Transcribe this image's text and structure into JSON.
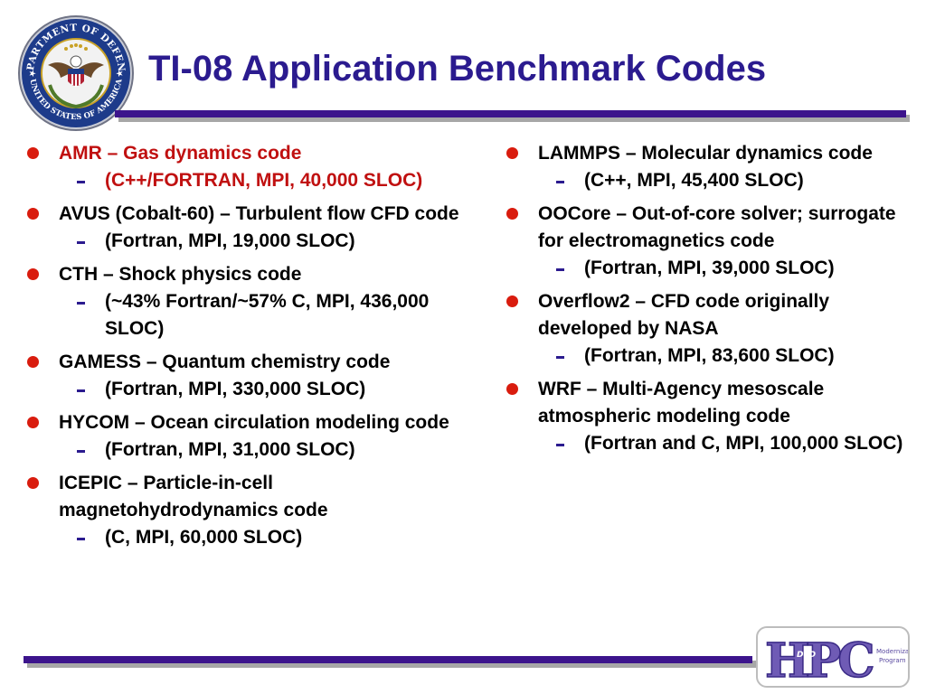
{
  "title": "TI-08 Application Benchmark Codes",
  "colors": {
    "title": "#2b1b8f",
    "rule": "#3c148c",
    "bullet": "#d91c0e",
    "highlight_text": "#c01010"
  },
  "icons": {
    "bullet": "red-disc",
    "sub_bullet": "dash"
  },
  "seal": {
    "text_top": "DEPARTMENT OF DEFENSE",
    "text_bottom": "UNITED STATES OF AMERICA"
  },
  "hpc_logo": {
    "letters": "HPC",
    "sub_letters": "DoD",
    "line1": "Modernization",
    "line2": "Program"
  },
  "left_items": [
    {
      "text": "AMR – Gas dynamics code",
      "highlight": true,
      "subs": [
        {
          "text": "(C++/FORTRAN, MPI, 40,000 SLOC)"
        }
      ]
    },
    {
      "text": "AVUS (Cobalt-60) – Turbulent flow CFD code",
      "highlight": false,
      "subs": [
        {
          "text": "(Fortran, MPI, 19,000 SLOC)"
        }
      ]
    },
    {
      "text": "CTH – Shock physics code",
      "highlight": false,
      "subs": [
        {
          "text": "(~43% Fortran/~57% C, MPI, 436,000 SLOC)"
        }
      ]
    },
    {
      "text": "GAMESS – Quantum chemistry code",
      "highlight": false,
      "subs": [
        {
          "text": "(Fortran, MPI, 330,000 SLOC)"
        }
      ]
    },
    {
      "text": "HYCOM – Ocean circulation modeling code",
      "highlight": false,
      "subs": [
        {
          "text": "(Fortran, MPI, 31,000 SLOC)"
        }
      ]
    },
    {
      "text": "ICEPIC – Particle-in-cell magnetohydrodynamics code",
      "highlight": false,
      "subs": [
        {
          "text": "(C, MPI, 60,000 SLOC)"
        }
      ]
    }
  ],
  "right_items": [
    {
      "text": "LAMMPS – Molecular dynamics code",
      "highlight": false,
      "subs": [
        {
          "text": "(C++, MPI, 45,400 SLOC)"
        }
      ]
    },
    {
      "text": "OOCore – Out-of-core solver; surrogate for electromagnetics code",
      "highlight": false,
      "subs": [
        {
          "text": "(Fortran, MPI, 39,000 SLOC)"
        }
      ]
    },
    {
      "text": "Overflow2 – CFD code originally developed by NASA",
      "highlight": false,
      "subs": [
        {
          "text": "(Fortran, MPI, 83,600 SLOC)"
        }
      ]
    },
    {
      "text": "WRF – Multi-Agency mesoscale atmospheric modeling code",
      "highlight": false,
      "subs": [
        {
          "text": "(Fortran and C, MPI, 100,000 SLOC)"
        }
      ]
    }
  ]
}
